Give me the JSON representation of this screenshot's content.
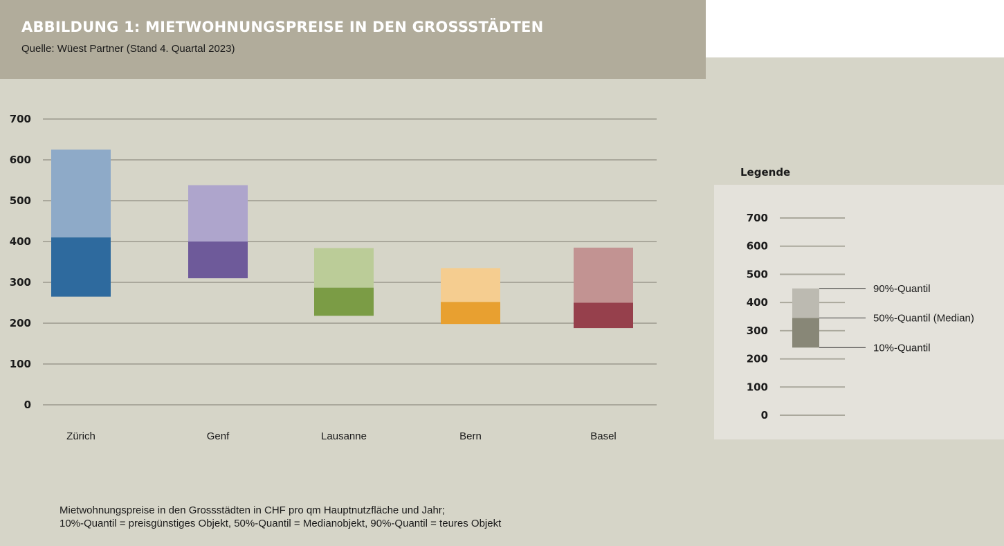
{
  "header": {
    "title": "ABBILDUNG 1: MIETWOHNUNGSPREISE IN DEN GROSSSTÄDTEN",
    "source": "Quelle: Wüest Partner (Stand 4. Quartal 2023)"
  },
  "chart_data": {
    "type": "bar",
    "subtype": "floating-stacked-range",
    "categories": [
      "Zürich",
      "Genf",
      "Lausanne",
      "Bern",
      "Basel"
    ],
    "ylim": [
      0,
      700
    ],
    "yticks": [
      "0",
      "100",
      "200",
      "300",
      "400",
      "500",
      "600",
      "700"
    ],
    "grid": true,
    "series": [
      {
        "q10": 265,
        "q50": 410,
        "q90": 625,
        "color_low": "#2e6a9e",
        "color_high": "#8eaac8"
      },
      {
        "q10": 310,
        "q50": 400,
        "q90": 538,
        "color_low": "#6e5a9a",
        "color_high": "#aea5cc"
      },
      {
        "q10": 218,
        "q50": 287,
        "q90": 384,
        "color_low": "#7b9c45",
        "color_high": "#bbcc98"
      },
      {
        "q10": 198,
        "q50": 252,
        "q90": 335,
        "color_low": "#e8a030",
        "color_high": "#f5cd90"
      },
      {
        "q10": 188,
        "q50": 250,
        "q90": 385,
        "color_low": "#96404c",
        "color_high": "#c29392"
      }
    ]
  },
  "legend": {
    "title": "Legende",
    "yticks": [
      "0",
      "100",
      "200",
      "300",
      "400",
      "500",
      "600",
      "700"
    ],
    "ylim": [
      0,
      700
    ],
    "example": {
      "q10": 240,
      "q50": 345,
      "q90": 450,
      "color_low": "#888777",
      "color_high": "#bcbab1"
    },
    "labels": {
      "q90": "90%-Quantil",
      "q50": "50%-Quantil (Median)",
      "q10": "10%-Quantil"
    }
  },
  "note": {
    "line1": "Mietwohnungspreise in den Grossstädten in CHF pro qm Hauptnutzfläche und Jahr;",
    "line2": "10%-Quantil = preisgünstiges Objekt, 50%-Quantil = Medianobjekt, 90%-Quantil = teures Objekt"
  },
  "colors": {
    "background": "#d6d5c8",
    "header": "#b1ac9b",
    "grid": "#aaa89c",
    "legend_panel": "#e4e2db"
  }
}
